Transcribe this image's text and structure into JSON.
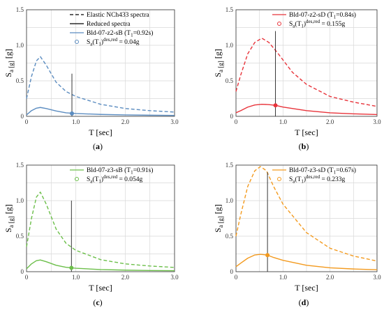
{
  "figure": {
    "panel_labels": [
      "(a)",
      "(b)",
      "(c)",
      "(d)"
    ]
  },
  "chart_data": [
    {
      "type": "line",
      "panel": "(a)",
      "xlabel": "T [sec]",
      "ylabel": "S_a [g]",
      "xlim": [
        0,
        3
      ],
      "ylim": [
        0,
        1.5
      ],
      "xticks": [
        "0",
        "1.0",
        "2.0",
        "3.0"
      ],
      "yticks": [
        "0",
        "0.5",
        "1.0",
        "1.5"
      ],
      "grid": true,
      "legend": "top-right",
      "color": "#5b8cc0",
      "series": [
        {
          "name": "Elastic NCh433 spectra",
          "style": "dashed",
          "legend_color": "#000000",
          "x": [
            0,
            0.1,
            0.2,
            0.28,
            0.4,
            0.6,
            0.8,
            1.0,
            1.5,
            2.0,
            2.5,
            3.0
          ],
          "y": [
            0.25,
            0.56,
            0.78,
            0.84,
            0.72,
            0.48,
            0.35,
            0.28,
            0.17,
            0.11,
            0.08,
            0.06
          ]
        },
        {
          "name": "Reduced spectra",
          "style": "solid-legend-only",
          "legend_color": "#000000",
          "x": [],
          "y": []
        },
        {
          "name": "Bld-07-z2-sB (T₁=0.92s)",
          "style": "solid",
          "x": [
            0,
            0.1,
            0.2,
            0.28,
            0.4,
            0.6,
            0.8,
            1.0,
            1.5,
            2.0,
            2.5,
            3.0
          ],
          "y": [
            0.02,
            0.08,
            0.115,
            0.125,
            0.11,
            0.075,
            0.05,
            0.04,
            0.027,
            0.02,
            0.016,
            0.013
          ]
        },
        {
          "name": "Sₐ(T₁)ᵈᵉˢ·ʳᵉᵈ = 0.04g",
          "style": "marker",
          "x": [
            0.92
          ],
          "y": [
            0.04
          ]
        }
      ],
      "vline": {
        "x": 0.92,
        "y_top": 0.6
      }
    },
    {
      "type": "line",
      "panel": "(b)",
      "xlabel": "T [sec]",
      "ylabel": "S_a [g]",
      "xlim": [
        0,
        3
      ],
      "ylim": [
        0,
        1.5
      ],
      "xticks": [
        "0",
        "1.0",
        "2.0",
        "3.0"
      ],
      "yticks": [
        "0",
        "0.5",
        "1.0",
        "1.5"
      ],
      "grid": true,
      "legend": "top-right",
      "color": "#e8333a",
      "series": [
        {
          "name": "elastic",
          "style": "dashed",
          "legend_hidden": true,
          "x": [
            0,
            0.1,
            0.25,
            0.4,
            0.55,
            0.7,
            0.9,
            1.2,
            1.5,
            2.0,
            2.5,
            3.0
          ],
          "y": [
            0.35,
            0.58,
            0.88,
            1.04,
            1.1,
            1.04,
            0.88,
            0.62,
            0.45,
            0.28,
            0.2,
            0.14
          ]
        },
        {
          "name": "Bld-07-z2-sD (T₁=0.84s)",
          "style": "solid",
          "x": [
            0,
            0.1,
            0.25,
            0.4,
            0.55,
            0.7,
            0.84,
            1.0,
            1.5,
            2.0,
            2.5,
            3.0
          ],
          "y": [
            0.05,
            0.08,
            0.13,
            0.16,
            0.17,
            0.165,
            0.155,
            0.13,
            0.08,
            0.05,
            0.035,
            0.025
          ]
        },
        {
          "name": "Sₐ(T₁)ᵈᵉˢ·ʳᵉᵈ = 0.155g",
          "style": "marker",
          "x": [
            0.84
          ],
          "y": [
            0.155
          ]
        }
      ],
      "vline": {
        "x": 0.84,
        "y_top": 1.2
      }
    },
    {
      "type": "line",
      "panel": "(c)",
      "xlabel": "T [sec]",
      "ylabel": "S_a [g]",
      "xlim": [
        0,
        3
      ],
      "ylim": [
        0,
        1.5
      ],
      "xticks": [
        "0",
        "1.0",
        "2.0",
        "3.0"
      ],
      "yticks": [
        "0",
        "0.5",
        "1.0",
        "1.5"
      ],
      "grid": true,
      "legend": "top-right",
      "color": "#6cbf4a",
      "series": [
        {
          "name": "elastic",
          "style": "dashed",
          "legend_hidden": true,
          "x": [
            0,
            0.1,
            0.2,
            0.28,
            0.4,
            0.6,
            0.8,
            1.0,
            1.5,
            2.0,
            2.5,
            3.0
          ],
          "y": [
            0.35,
            0.75,
            1.05,
            1.12,
            0.95,
            0.6,
            0.4,
            0.3,
            0.17,
            0.11,
            0.08,
            0.06
          ]
        },
        {
          "name": "Bld-07-z3-sB (T₁=0.91s)",
          "style": "solid",
          "x": [
            0,
            0.1,
            0.2,
            0.28,
            0.4,
            0.6,
            0.8,
            1.0,
            1.5,
            2.0,
            2.5,
            3.0
          ],
          "y": [
            0.04,
            0.11,
            0.155,
            0.165,
            0.14,
            0.09,
            0.062,
            0.048,
            0.03,
            0.022,
            0.017,
            0.014
          ]
        },
        {
          "name": "Sₐ(T₁)ᵈᵉˢ·ʳᵉᵈ = 0.054g",
          "style": "marker",
          "x": [
            0.91
          ],
          "y": [
            0.054
          ]
        }
      ],
      "vline": {
        "x": 0.91,
        "y_top": 1.0
      }
    },
    {
      "type": "line",
      "panel": "(d)",
      "xlabel": "T [sec]",
      "ylabel": "S_a [g]",
      "xlim": [
        0,
        3
      ],
      "ylim": [
        0,
        1.5
      ],
      "xticks": [
        "0",
        "1.0",
        "2.0",
        "3.0"
      ],
      "yticks": [
        "0",
        "0.5",
        "1.0",
        "1.5"
      ],
      "grid": true,
      "legend": "top-right",
      "color": "#f39a1e",
      "series": [
        {
          "name": "elastic",
          "style": "dashed",
          "legend_hidden": true,
          "x": [
            0,
            0.1,
            0.25,
            0.4,
            0.52,
            0.65,
            0.8,
            1.0,
            1.5,
            2.0,
            2.5,
            3.0
          ],
          "y": [
            0.5,
            0.8,
            1.2,
            1.42,
            1.48,
            1.42,
            1.2,
            0.95,
            0.55,
            0.33,
            0.22,
            0.15
          ]
        },
        {
          "name": "Bld-07-z3-sD (T₁=0.67s)",
          "style": "solid",
          "x": [
            0,
            0.1,
            0.25,
            0.4,
            0.52,
            0.67,
            0.8,
            1.0,
            1.5,
            2.0,
            2.5,
            3.0
          ],
          "y": [
            0.07,
            0.12,
            0.19,
            0.235,
            0.245,
            0.233,
            0.2,
            0.16,
            0.09,
            0.055,
            0.038,
            0.028
          ]
        },
        {
          "name": "Sₐ(T₁)ᵈᵉˢ·ʳᵉᵈ = 0.233g",
          "style": "marker",
          "x": [
            0.67
          ],
          "y": [
            0.233
          ]
        }
      ],
      "vline": {
        "x": 0.67,
        "y_top": 1.4
      }
    }
  ]
}
